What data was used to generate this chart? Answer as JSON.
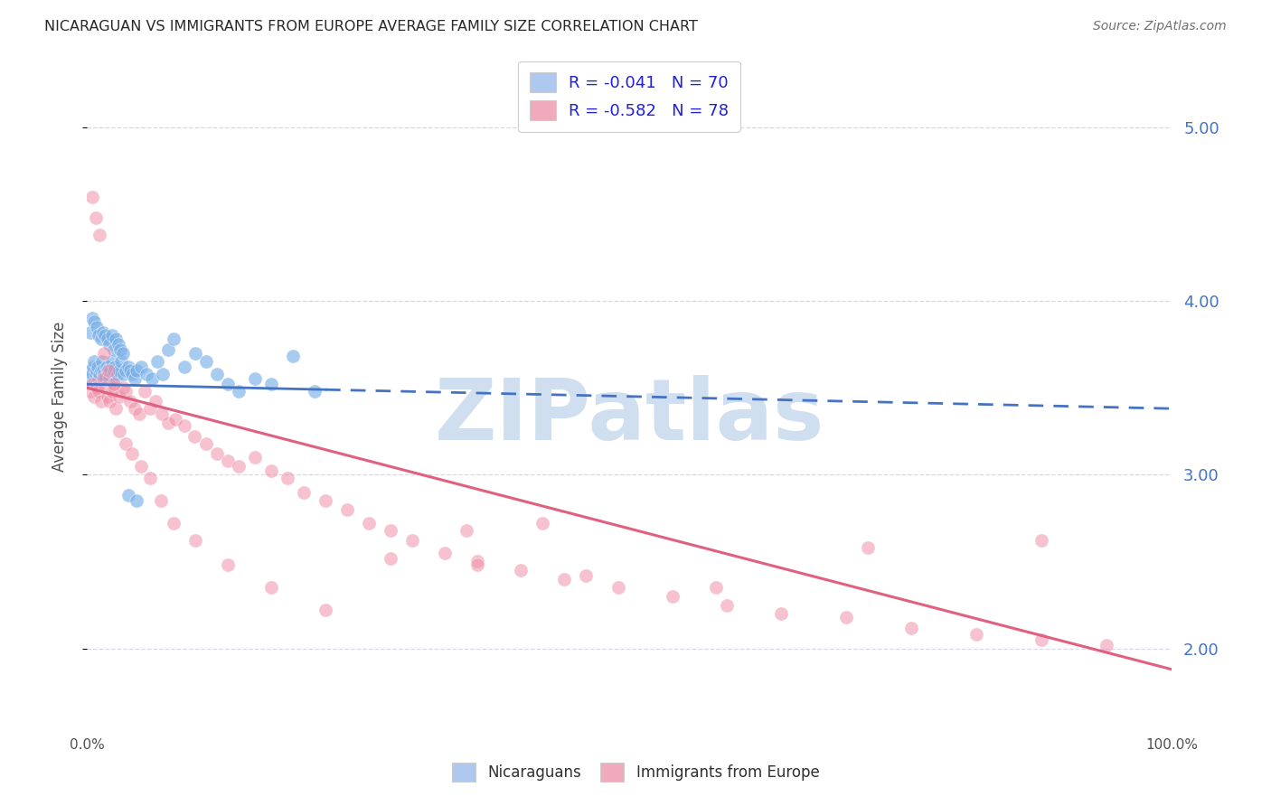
{
  "title": "NICARAGUAN VS IMMIGRANTS FROM EUROPE AVERAGE FAMILY SIZE CORRELATION CHART",
  "source": "Source: ZipAtlas.com",
  "ylabel": "Average Family Size",
  "yticks": [
    2.0,
    3.0,
    4.0,
    5.0
  ],
  "xlim": [
    0.0,
    1.0
  ],
  "ylim": [
    1.55,
    5.35
  ],
  "legend1_label": "R = -0.041   N = 70",
  "legend2_label": "R = -0.582   N = 78",
  "legend1_facecolor": "#aec8f0",
  "legend2_facecolor": "#f0aabb",
  "scatter1_color": "#7ab0e8",
  "scatter2_color": "#f090a8",
  "trendline1_color": "#4472c4",
  "trendline2_color": "#e06080",
  "watermark": "ZIPatlas",
  "watermark_color": "#d0dff0",
  "background_color": "#ffffff",
  "grid_color": "#d8d8e8",
  "title_color": "#282828",
  "right_axis_color": "#4472c4",
  "trendline1_x0": 0.0,
  "trendline1_y0": 3.52,
  "trendline1_x1": 1.0,
  "trendline1_y1": 3.38,
  "trendline2_x0": 0.0,
  "trendline2_y0": 3.5,
  "trendline2_x1": 1.0,
  "trendline2_y1": 1.88,
  "trendline1_solid_end": 0.22,
  "nicaraguan_x": [
    0.003,
    0.004,
    0.005,
    0.006,
    0.007,
    0.008,
    0.009,
    0.01,
    0.011,
    0.012,
    0.013,
    0.014,
    0.015,
    0.016,
    0.017,
    0.018,
    0.019,
    0.02,
    0.021,
    0.022,
    0.023,
    0.024,
    0.025,
    0.026,
    0.027,
    0.028,
    0.03,
    0.032,
    0.034,
    0.036,
    0.038,
    0.04,
    0.042,
    0.044,
    0.046,
    0.05,
    0.055,
    0.06,
    0.065,
    0.07,
    0.075,
    0.08,
    0.09,
    0.1,
    0.11,
    0.12,
    0.13,
    0.14,
    0.155,
    0.17,
    0.19,
    0.21,
    0.003,
    0.005,
    0.007,
    0.009,
    0.011,
    0.013,
    0.015,
    0.017,
    0.019,
    0.021,
    0.023,
    0.025,
    0.027,
    0.029,
    0.031,
    0.033,
    0.038,
    0.046
  ],
  "nicaraguan_y": [
    3.55,
    3.6,
    3.58,
    3.62,
    3.65,
    3.58,
    3.6,
    3.62,
    3.55,
    3.58,
    3.6,
    3.65,
    3.6,
    3.58,
    3.55,
    3.62,
    3.6,
    3.58,
    3.55,
    3.6,
    3.65,
    3.58,
    3.6,
    3.62,
    3.55,
    3.58,
    3.6,
    3.65,
    3.58,
    3.6,
    3.62,
    3.6,
    3.58,
    3.55,
    3.6,
    3.62,
    3.58,
    3.55,
    3.65,
    3.58,
    3.72,
    3.78,
    3.62,
    3.7,
    3.65,
    3.58,
    3.52,
    3.48,
    3.55,
    3.52,
    3.68,
    3.48,
    3.82,
    3.9,
    3.88,
    3.85,
    3.8,
    3.78,
    3.82,
    3.8,
    3.78,
    3.75,
    3.8,
    3.72,
    3.78,
    3.75,
    3.72,
    3.7,
    2.88,
    2.85
  ],
  "europe_x": [
    0.003,
    0.005,
    0.007,
    0.009,
    0.011,
    0.013,
    0.015,
    0.017,
    0.019,
    0.021,
    0.023,
    0.025,
    0.027,
    0.03,
    0.033,
    0.036,
    0.04,
    0.044,
    0.048,
    0.053,
    0.058,
    0.063,
    0.069,
    0.075,
    0.082,
    0.09,
    0.099,
    0.11,
    0.12,
    0.13,
    0.14,
    0.155,
    0.17,
    0.185,
    0.2,
    0.22,
    0.24,
    0.26,
    0.28,
    0.3,
    0.33,
    0.36,
    0.4,
    0.44,
    0.49,
    0.54,
    0.59,
    0.64,
    0.7,
    0.76,
    0.82,
    0.88,
    0.94,
    0.005,
    0.008,
    0.012,
    0.016,
    0.02,
    0.025,
    0.03,
    0.036,
    0.042,
    0.05,
    0.058,
    0.068,
    0.08,
    0.1,
    0.13,
    0.17,
    0.22,
    0.28,
    0.36,
    0.46,
    0.58,
    0.72,
    0.88,
    0.35,
    0.42
  ],
  "europe_y": [
    3.48,
    3.52,
    3.45,
    3.5,
    3.48,
    3.42,
    3.55,
    3.5,
    3.45,
    3.42,
    3.48,
    3.5,
    3.38,
    3.45,
    3.5,
    3.48,
    3.42,
    3.38,
    3.35,
    3.48,
    3.38,
    3.42,
    3.35,
    3.3,
    3.32,
    3.28,
    3.22,
    3.18,
    3.12,
    3.08,
    3.05,
    3.1,
    3.02,
    2.98,
    2.9,
    2.85,
    2.8,
    2.72,
    2.68,
    2.62,
    2.55,
    2.5,
    2.45,
    2.4,
    2.35,
    2.3,
    2.25,
    2.2,
    2.18,
    2.12,
    2.08,
    2.05,
    2.02,
    4.6,
    4.48,
    4.38,
    3.7,
    3.6,
    3.52,
    3.25,
    3.18,
    3.12,
    3.05,
    2.98,
    2.85,
    2.72,
    2.62,
    2.48,
    2.35,
    2.22,
    2.52,
    2.48,
    2.42,
    2.35,
    2.58,
    2.62,
    2.68,
    2.72
  ]
}
